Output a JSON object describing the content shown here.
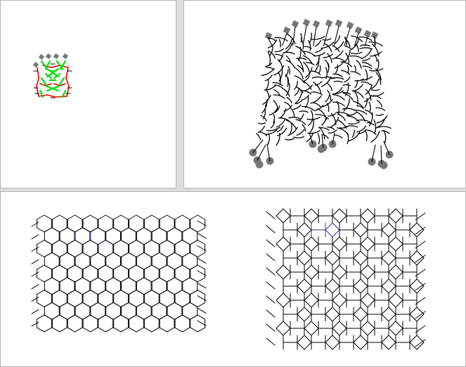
{
  "app": {
    "panel_names": [
      "structure-overview",
      "structure-detail",
      "lattice-view"
    ]
  },
  "colors": {
    "background": "#dcdcdc",
    "panel_bg": "#ffffff",
    "panel_border": "#b4b4b4",
    "strand": "#000000",
    "bond_primary": "#00dd00",
    "bond_secondary": "#ee0000",
    "highlight": "#3333aa",
    "anchor": "#777777"
  },
  "icons": {
    "anchor_square": "anchor-square-icon",
    "anchor_disc": "anchor-disc-icon"
  },
  "lattices": [
    {
      "name": "hexagonal-lattice",
      "rows": 9,
      "cols": 6
    },
    {
      "name": "rhombic-lattice",
      "rows": 10,
      "cols": 8
    }
  ]
}
